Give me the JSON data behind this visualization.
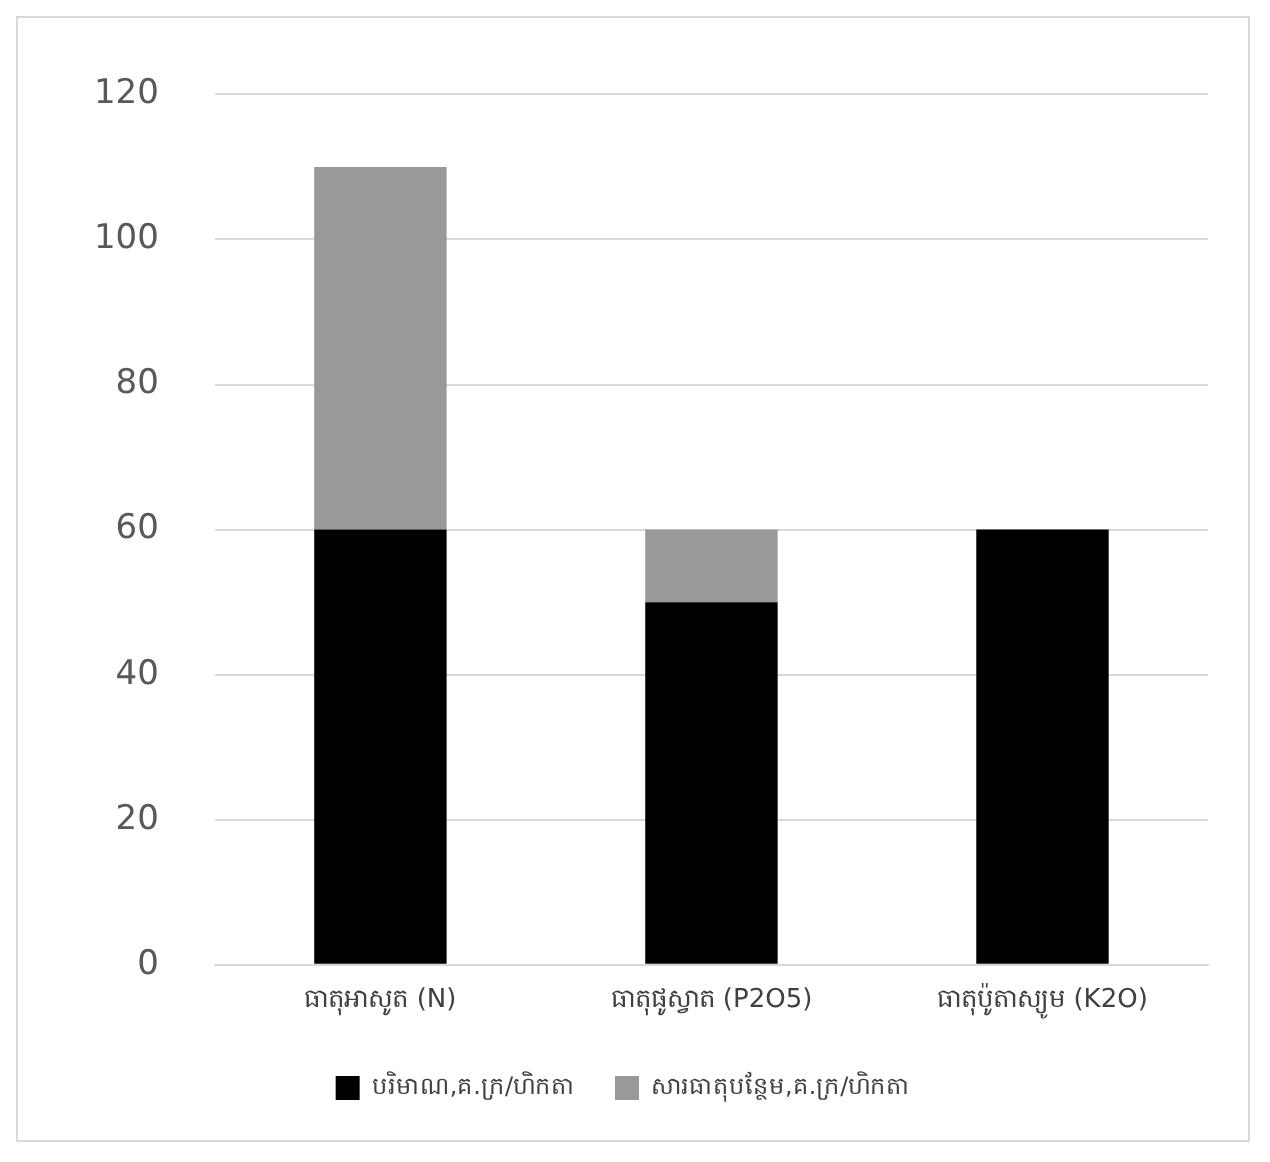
{
  "chart_data": {
    "type": "bar",
    "stacked": true,
    "categories": [
      "ធាតុអាសូត (N)",
      "ធាតុផូស្វាត (P2O5)",
      "ធាតុប៉ូតាស្យូម (K2O)"
    ],
    "series": [
      {
        "name": "បរិមាណ,គ.ក្រ/ហិកតា",
        "color": "#000000",
        "values": [
          60,
          50,
          60
        ]
      },
      {
        "name": "សារធាតុបន្ថែម,គ.ក្រ/ហិកតា",
        "color": "#999999",
        "values": [
          50,
          10,
          0
        ]
      }
    ],
    "ylim": [
      0,
      120
    ],
    "yticks": [
      0,
      20,
      40,
      60,
      80,
      100,
      120
    ],
    "grid": "y",
    "legend": "bottom"
  }
}
